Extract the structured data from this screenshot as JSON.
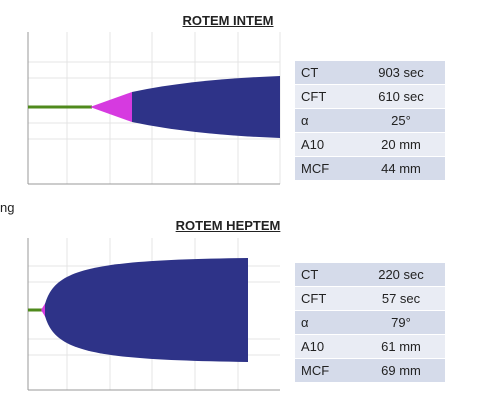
{
  "stray_text": "ng",
  "panels": [
    {
      "title": "ROTEM INTEM",
      "rows": [
        [
          "CT",
          "903 sec"
        ],
        [
          "CFT",
          "610 sec"
        ],
        [
          "α",
          "25°"
        ],
        [
          "A10",
          "20 mm"
        ],
        [
          "MCF",
          "44 mm"
        ]
      ]
    },
    {
      "title": "ROTEM HEPTEM",
      "rows": [
        [
          "CT",
          "220 sec"
        ],
        [
          "CFT",
          "57 sec"
        ],
        [
          "α",
          "79°"
        ],
        [
          "A10",
          "61 mm"
        ],
        [
          "MCF",
          "69 mm"
        ]
      ]
    }
  ]
}
